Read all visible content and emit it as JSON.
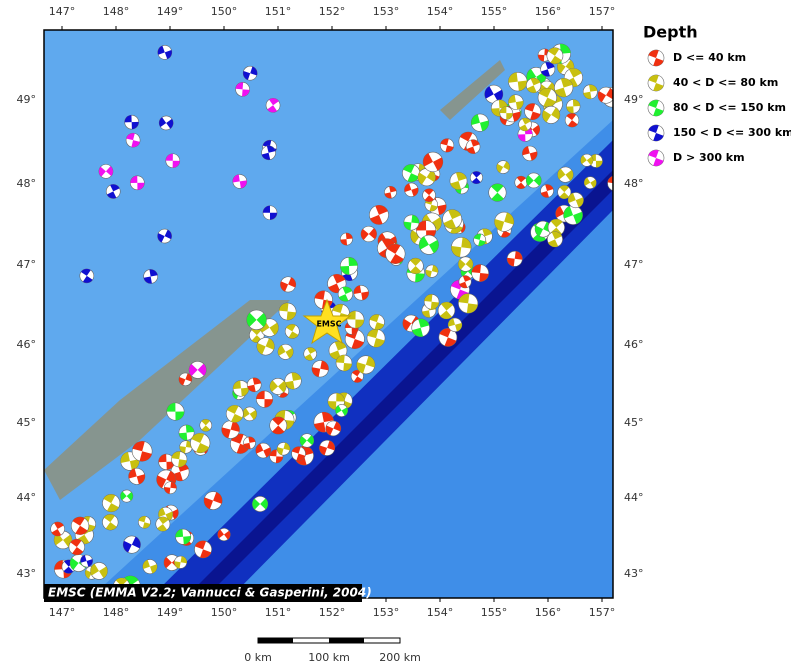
{
  "map": {
    "longitude_labels": [
      "147°",
      "148°",
      "149°",
      "150°",
      "151°",
      "152°",
      "153°",
      "154°",
      "155°",
      "156°",
      "157°"
    ],
    "latitude_labels": [
      "49°",
      "48°",
      "47°",
      "46°",
      "45°",
      "44°",
      "43°"
    ],
    "legend": {
      "title": "Depth",
      "items": [
        {
          "label": "D <= 40 km",
          "color": "#f03010"
        },
        {
          "label": "40 < D <= 80 km",
          "color": "#c8c010"
        },
        {
          "label": "80 < D <= 150 km",
          "color": "#20f030"
        },
        {
          "label": "150 < D <= 300 km",
          "color": "#1010d0"
        },
        {
          "label": "D > 300 km",
          "color": "#f010f0"
        }
      ]
    },
    "marker_label": "EMSC",
    "credit": "EMSC (EMMA V2.2; Vannucci & Gasperini, 2004)",
    "scale_bar": {
      "labels": [
        "0 km",
        "100 km",
        "200 km"
      ]
    }
  }
}
